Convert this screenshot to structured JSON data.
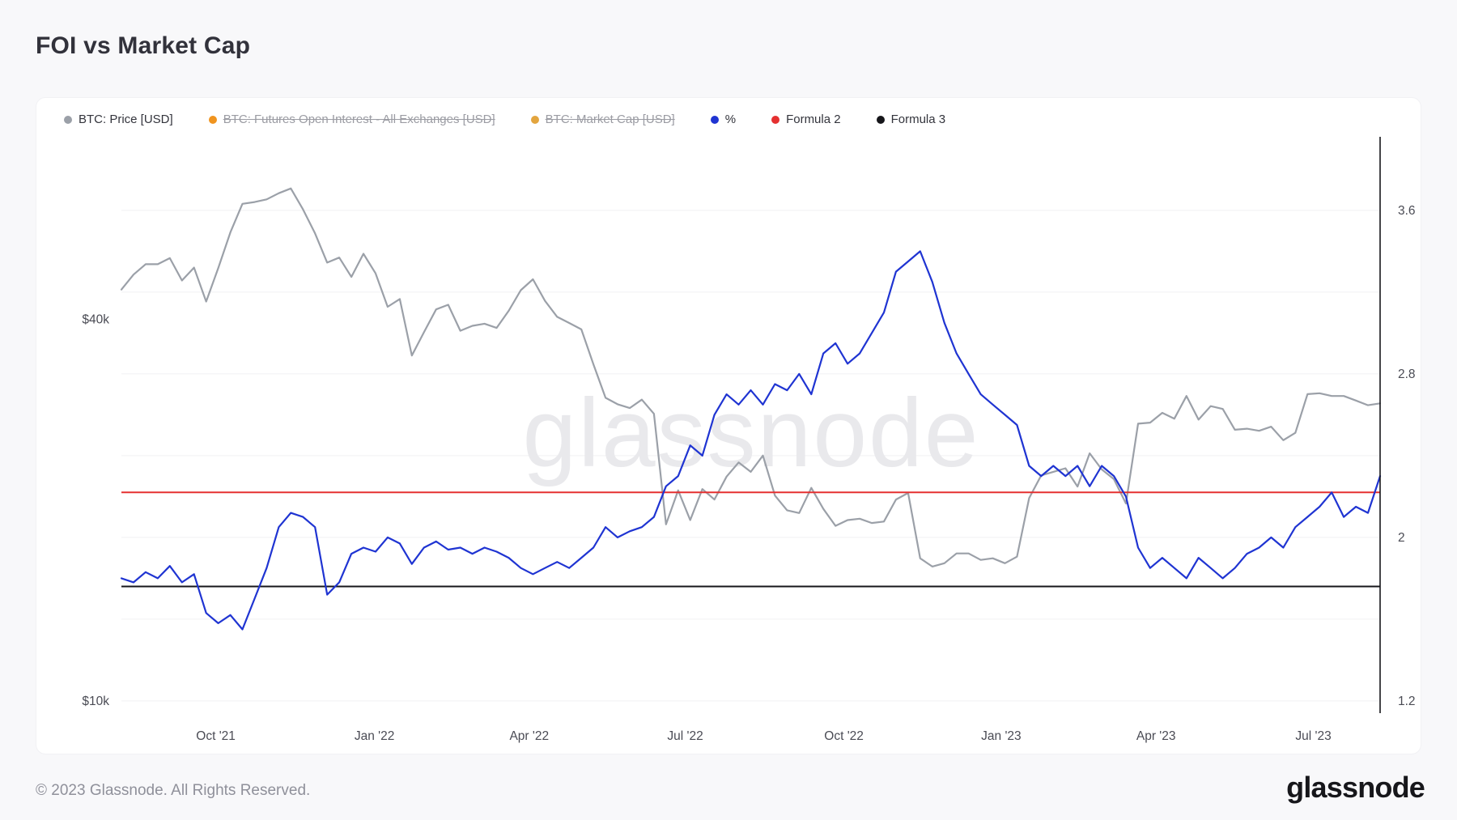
{
  "page": {
    "title": "FOI vs Market Cap",
    "watermark": "glassnode",
    "footer_copyright": "© 2023 Glassnode. All Rights Reserved.",
    "brand_wordmark": "glassnode"
  },
  "legend": [
    {
      "id": "btc-price",
      "label": "BTC: Price [USD]",
      "color": "#9ba0a8",
      "disabled": false
    },
    {
      "id": "btc-futures-open-interest",
      "label": "BTC: Futures Open Interest - All Exchanges [USD]",
      "color": "#f0941f",
      "disabled": true
    },
    {
      "id": "btc-market-cap",
      "label": "BTC: Market Cap [USD]",
      "color": "#e3a53e",
      "disabled": true
    },
    {
      "id": "percent",
      "label": "%",
      "color": "#1f34d2",
      "disabled": false
    },
    {
      "id": "formula-2",
      "label": "Formula 2",
      "color": "#e53030",
      "disabled": false
    },
    {
      "id": "formula-3",
      "label": "Formula 3",
      "color": "#16161a",
      "disabled": false
    }
  ],
  "chart_data": {
    "type": "line",
    "title": "FOI vs Market Cap",
    "x_start": "Aug 2021",
    "x_end": "Aug 2023",
    "grid": true,
    "legend_position": "top",
    "x_ticks": [
      {
        "label": "Oct '21",
        "pos": 0.075
      },
      {
        "label": "Jan '22",
        "pos": 0.201
      },
      {
        "label": "Apr '22",
        "pos": 0.324
      },
      {
        "label": "Jul '22",
        "pos": 0.448
      },
      {
        "label": "Oct '22",
        "pos": 0.574
      },
      {
        "label": "Jan '23",
        "pos": 0.699
      },
      {
        "label": "Apr '23",
        "pos": 0.822
      },
      {
        "label": "Jul '23",
        "pos": 0.947
      }
    ],
    "left_axis": {
      "scale": "log",
      "unit": "kUSD",
      "min": 9.57,
      "max": 77.7,
      "ticks": [
        {
          "value": 40,
          "label": "$40k"
        },
        {
          "value": 10,
          "label": "$10k"
        }
      ]
    },
    "right_axis": {
      "scale": "linear",
      "unit": "%",
      "min": 1.14,
      "max": 3.96,
      "ticks": [
        {
          "value": 3.6,
          "label": "3.6"
        },
        {
          "value": 2.8,
          "label": "2.8"
        },
        {
          "value": 2,
          "label": "2"
        },
        {
          "value": 1.2,
          "label": "1.2"
        }
      ],
      "gridlines": [
        1.2,
        1.6,
        2.0,
        2.4,
        2.8,
        3.2,
        3.6
      ]
    },
    "series": [
      {
        "id": "btc-price",
        "name": "BTC: Price [USD]",
        "axis": "left",
        "unit": "kUSD",
        "color": "#9ba0a8",
        "values": [
          44.6,
          47.1,
          48.9,
          48.9,
          50.0,
          46.1,
          48.3,
          42.7,
          48.2,
          54.9,
          60.9,
          61.3,
          61.9,
          63.3,
          64.4,
          59.7,
          54.7,
          49.2,
          50.1,
          46.7,
          50.8,
          47.3,
          41.9,
          43.1,
          35.1,
          38.2,
          41.5,
          42.2,
          38.4,
          39.1,
          39.4,
          38.8,
          41.3,
          44.5,
          46.3,
          42.8,
          40.4,
          39.5,
          38.6,
          34.0,
          30.1,
          29.4,
          29.0,
          29.9,
          28.4,
          19.0,
          21.5,
          19.3,
          21.6,
          20.8,
          22.6,
          23.8,
          23.0,
          24.4,
          21.1,
          20.0,
          19.8,
          21.7,
          20.1,
          18.9,
          19.3,
          19.4,
          19.1,
          19.2,
          20.8,
          21.3,
          16.8,
          16.3,
          16.5,
          17.1,
          17.1,
          16.7,
          16.8,
          16.5,
          16.9,
          20.9,
          22.7,
          23.0,
          23.3,
          21.8,
          24.6,
          23.2,
          22.4,
          20.5,
          27.4,
          27.5,
          28.5,
          27.9,
          30.3,
          27.8,
          29.2,
          28.9,
          26.8,
          26.9,
          26.7,
          27.1,
          25.8,
          26.5,
          30.5,
          30.6,
          30.3,
          30.3,
          29.8,
          29.3,
          29.5
        ]
      },
      {
        "id": "formula-3",
        "name": "Formula 3",
        "axis": "right",
        "unit": "%",
        "color": "#16161a",
        "constant": 1.76
      },
      {
        "id": "formula-2",
        "name": "Formula 2",
        "axis": "right",
        "unit": "%",
        "color": "#e53030",
        "constant": 2.22
      },
      {
        "id": "percent",
        "name": "%",
        "axis": "right",
        "unit": "%",
        "color": "#1f34d2",
        "values": [
          1.8,
          1.78,
          1.83,
          1.8,
          1.86,
          1.78,
          1.82,
          1.63,
          1.58,
          1.62,
          1.55,
          1.7,
          1.85,
          2.05,
          2.12,
          2.1,
          2.05,
          1.72,
          1.78,
          1.92,
          1.95,
          1.93,
          2.0,
          1.97,
          1.87,
          1.95,
          1.98,
          1.94,
          1.95,
          1.92,
          1.95,
          1.93,
          1.9,
          1.85,
          1.82,
          1.85,
          1.88,
          1.85,
          1.9,
          1.95,
          2.05,
          2.0,
          2.03,
          2.05,
          2.1,
          2.25,
          2.3,
          2.45,
          2.4,
          2.6,
          2.7,
          2.65,
          2.72,
          2.65,
          2.75,
          2.72,
          2.8,
          2.7,
          2.9,
          2.95,
          2.85,
          2.9,
          3.0,
          3.1,
          3.3,
          3.35,
          3.4,
          3.25,
          3.05,
          2.9,
          2.8,
          2.7,
          2.65,
          2.6,
          2.55,
          2.35,
          2.3,
          2.35,
          2.3,
          2.35,
          2.25,
          2.35,
          2.3,
          2.2,
          1.95,
          1.85,
          1.9,
          1.85,
          1.8,
          1.9,
          1.85,
          1.8,
          1.85,
          1.92,
          1.95,
          2.0,
          1.95,
          2.05,
          2.1,
          2.15,
          2.22,
          2.1,
          2.15,
          2.12,
          2.3
        ]
      }
    ]
  }
}
